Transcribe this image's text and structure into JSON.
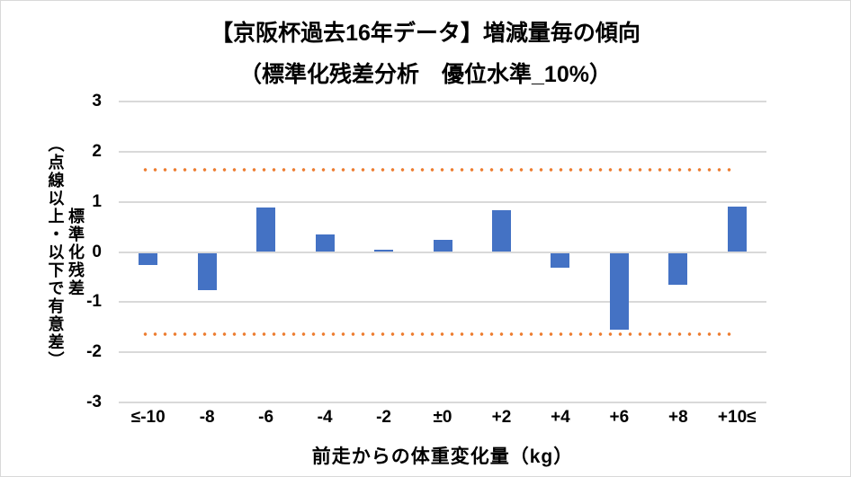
{
  "chart_data": {
    "type": "bar",
    "title": "【京阪杯過去16年データ】増減量毎の傾向",
    "subtitle": "（標準化残差分析　優位水準_10%）",
    "categories": [
      "≤-10",
      "-8",
      "-6",
      "-4",
      "-2",
      "±0",
      "+2",
      "+4",
      "+6",
      "+8",
      "+10≤"
    ],
    "values": [
      -0.25,
      -0.74,
      0.88,
      0.35,
      0.04,
      0.25,
      0.84,
      -0.3,
      -1.54,
      -0.63,
      0.91
    ],
    "significance_lines": {
      "upper": 1.645,
      "lower": -1.645,
      "style": "dotted"
    },
    "xlabel": "前走からの体重変化量（kg）",
    "ylabel": "標準化残差",
    "ylabel_note": "（点線以上・以下で有意差）",
    "ylim": [
      -3,
      3
    ],
    "yticks": [
      3,
      2,
      1,
      0,
      -1,
      -2,
      -3
    ],
    "grid": true,
    "legend": "none",
    "colors": {
      "bar": "#4472C4",
      "significance_dots": "#ED7D31",
      "gridline": "#D9D9D9",
      "text": "#000000",
      "border": "#D9D9D9"
    }
  }
}
